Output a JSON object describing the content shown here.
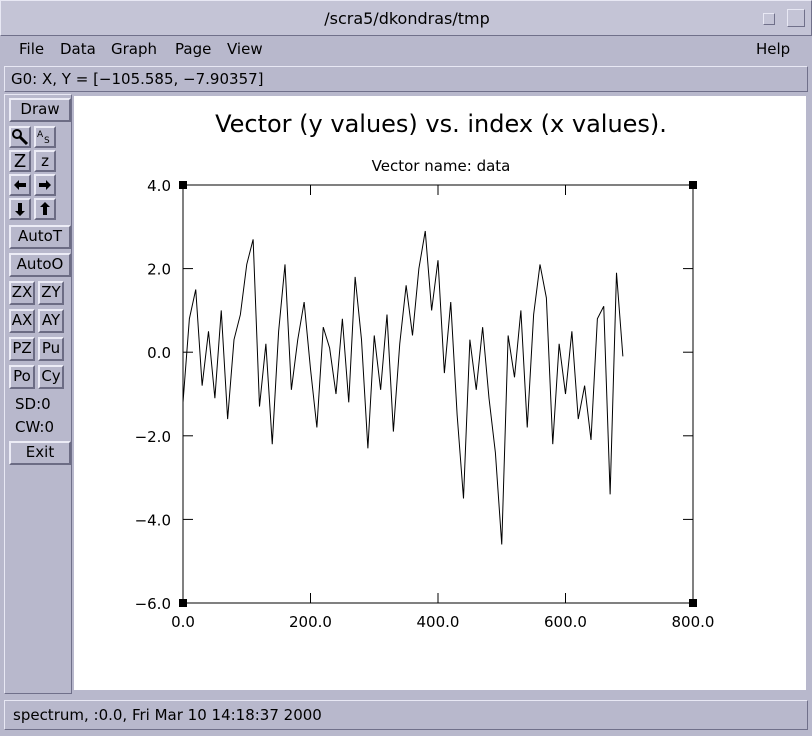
{
  "window": {
    "title": "/scra5/dkondras/tmp"
  },
  "menu": {
    "items": [
      "File",
      "Data",
      "Graph",
      "Page",
      "View"
    ],
    "help": "Help"
  },
  "status": {
    "coords": "G0: X, Y = [−105.585, −7.90357]"
  },
  "toolbar": {
    "buttons": [
      "Draw",
      "Z",
      "z",
      "AutoT",
      "AutoO",
      "ZX",
      "ZY",
      "AX",
      "AY",
      "PZ",
      "Pu",
      "Po",
      "Cy",
      "SD:0",
      "CW:0",
      "Exit"
    ]
  },
  "footer": {
    "status": "spectrum, :0.0, Fri Mar 10 14:18:37 2000"
  },
  "chart_data": {
    "type": "line",
    "title": "Vector (y values) vs. index (x values).",
    "subtitle": "Vector name: data",
    "color": "#000000",
    "x": [
      0,
      10,
      20,
      30,
      40,
      50,
      60,
      70,
      80,
      90,
      100,
      110,
      120,
      130,
      140,
      150,
      160,
      170,
      180,
      190,
      200,
      210,
      220,
      230,
      240,
      250,
      260,
      270,
      280,
      290,
      300,
      310,
      320,
      330,
      340,
      350,
      360,
      370,
      380,
      390,
      400,
      410,
      420,
      430,
      440,
      450,
      460,
      470,
      480,
      490,
      500,
      510,
      520,
      530,
      540,
      550,
      560,
      570,
      580,
      590,
      600,
      610,
      620,
      630,
      640,
      650,
      660,
      670,
      680,
      690
    ],
    "values": [
      -1.2,
      0.8,
      1.5,
      -0.8,
      0.5,
      -1.1,
      1.0,
      -1.6,
      0.3,
      0.9,
      2.1,
      2.7,
      -1.3,
      0.2,
      -2.2,
      0.5,
      2.1,
      -0.9,
      0.3,
      1.2,
      -0.4,
      -1.8,
      0.6,
      0.1,
      -1.0,
      0.8,
      -1.2,
      1.8,
      0.3,
      -2.3,
      0.4,
      -0.9,
      0.9,
      -1.9,
      0.2,
      1.6,
      0.4,
      2.0,
      2.9,
      1.0,
      2.2,
      -0.5,
      1.2,
      -1.5,
      -3.5,
      0.3,
      -0.9,
      0.6,
      -1.1,
      -2.4,
      -4.6,
      0.4,
      -0.6,
      1.0,
      -1.8,
      0.9,
      2.1,
      1.3,
      -2.2,
      0.2,
      -1.0,
      0.5,
      -1.6,
      -0.8,
      -2.1,
      0.8,
      1.1,
      -3.4,
      1.9,
      -0.1
    ],
    "xlim": [
      0,
      800
    ],
    "xticks": [
      {
        "value": 0,
        "label": "0.0"
      },
      {
        "value": 200,
        "label": "200.0"
      },
      {
        "value": 400,
        "label": "400.0"
      },
      {
        "value": 600,
        "label": "600.0"
      },
      {
        "value": 800,
        "label": "800.0"
      }
    ],
    "ylim": [
      -6,
      4
    ],
    "yticks": [
      {
        "value": -6,
        "label": "−6.0"
      },
      {
        "value": -4,
        "label": "−4.0"
      },
      {
        "value": -2,
        "label": "−2.0"
      },
      {
        "value": 0,
        "label": "0.0"
      },
      {
        "value": 2,
        "label": "2.0"
      },
      {
        "value": 4,
        "label": "4.0"
      }
    ]
  }
}
